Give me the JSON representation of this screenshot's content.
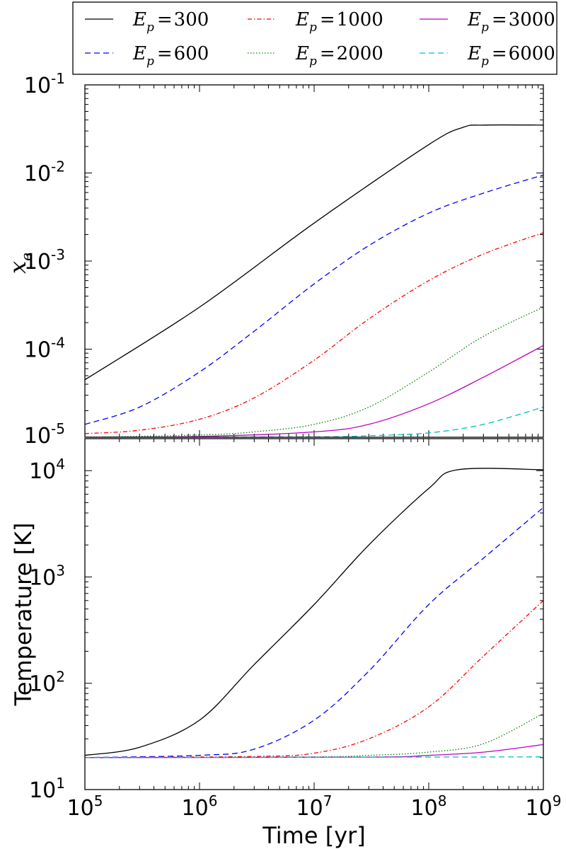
{
  "chart_data": [
    {
      "type": "line",
      "panel": "top",
      "xlabel": "",
      "ylabel": "x_e",
      "xscale": "log",
      "yscale": "log",
      "xlim": [
        100000,
        1000000000
      ],
      "ylim": [
        1e-05,
        0.1
      ],
      "x_tick_labels": [
        "",
        "",
        "",
        "",
        ""
      ],
      "y_tick_labels": [
        {
          "base": "10",
          "exp": "-5"
        },
        {
          "base": "10",
          "exp": "-4"
        },
        {
          "base": "10",
          "exp": "-3"
        },
        {
          "base": "10",
          "exp": "-2"
        },
        {
          "base": "10",
          "exp": "-1"
        }
      ],
      "legend_position": "top",
      "series": [
        {
          "name": "E_p = 300",
          "color": "#000000",
          "dash": "solid",
          "x": [
            100000,
            1000000,
            10000000,
            100000000,
            200000000,
            300000000,
            1000000000
          ],
          "y": [
            4.5e-05,
            0.0003,
            0.0027,
            0.021,
            0.033,
            0.035,
            0.035
          ]
        },
        {
          "name": "E_p = 600",
          "color": "#0000ff",
          "dash": "dashed",
          "x": [
            100000,
            300000,
            1000000,
            3000000,
            10000000,
            30000000,
            100000000,
            300000000,
            1000000000
          ],
          "y": [
            1.4e-05,
            2.2e-05,
            5.5e-05,
            0.00016,
            0.00055,
            0.0015,
            0.0035,
            0.0059,
            0.0095
          ]
        },
        {
          "name": "E_p = 1000",
          "color": "#ff0000",
          "dash": "dashdot",
          "x": [
            100000,
            300000,
            1000000,
            3000000,
            10000000,
            30000000,
            100000000,
            300000000,
            1000000000
          ],
          "y": [
            1.1e-05,
            1.2e-05,
            1.6e-05,
            2.8e-05,
            7.5e-05,
            0.00022,
            0.0006,
            0.0012,
            0.0021
          ]
        },
        {
          "name": "E_p = 2000",
          "color": "#008000",
          "dash": "dotted",
          "x": [
            100000,
            1000000,
            3000000,
            10000000,
            30000000,
            100000000,
            300000000,
            1000000000
          ],
          "y": [
            1e-05,
            1.06e-05,
            1.15e-05,
            1.4e-05,
            2.2e-05,
            5.5e-05,
            0.00014,
            0.0003
          ]
        },
        {
          "name": "E_p = 3000",
          "color": "#bf00bf",
          "dash": "solid",
          "x": [
            100000,
            1000000,
            10000000,
            30000000,
            100000000,
            300000000,
            1000000000
          ],
          "y": [
            1e-05,
            1.02e-05,
            1.15e-05,
            1.4e-05,
            2.4e-05,
            4.8e-05,
            0.00011
          ]
        },
        {
          "name": "E_p = 6000",
          "color": "#00bfbf",
          "dash": "dashed",
          "x": [
            100000,
            10000000,
            30000000,
            100000000,
            300000000,
            1000000000
          ],
          "y": [
            1e-05,
            1.01e-05,
            1.04e-05,
            1.12e-05,
            1.4e-05,
            2.2e-05
          ]
        }
      ]
    },
    {
      "type": "line",
      "panel": "bottom",
      "xlabel": "Time [yr]",
      "ylabel": "Temperature [K]",
      "xscale": "log",
      "yscale": "log",
      "xlim": [
        100000,
        1000000000
      ],
      "ylim": [
        10,
        20000
      ],
      "x_tick_labels": [
        {
          "base": "10",
          "exp": "5"
        },
        {
          "base": "10",
          "exp": "6"
        },
        {
          "base": "10",
          "exp": "7"
        },
        {
          "base": "10",
          "exp": "8"
        },
        {
          "base": "10",
          "exp": "9"
        }
      ],
      "y_tick_labels": [
        {
          "base": "10",
          "exp": "1"
        },
        {
          "base": "10",
          "exp": "2"
        },
        {
          "base": "10",
          "exp": "3"
        },
        {
          "base": "10",
          "exp": "4"
        }
      ],
      "series": [
        {
          "name": "E_p = 300",
          "color": "#000000",
          "dash": "solid",
          "x": [
            100000,
            300000,
            1000000,
            3000000,
            10000000,
            30000000,
            100000000,
            180000000,
            1000000000
          ],
          "y": [
            21,
            25,
            45,
            150,
            550,
            2000,
            6800,
            10200,
            10200
          ]
        },
        {
          "name": "E_p = 600",
          "color": "#0000ff",
          "dash": "dashed",
          "x": [
            100000,
            1000000,
            3000000,
            10000000,
            30000000,
            100000000,
            300000000,
            1000000000
          ],
          "y": [
            20,
            21,
            24,
            45,
            130,
            550,
            1500,
            4500
          ]
        },
        {
          "name": "E_p = 1000",
          "color": "#ff0000",
          "dash": "dashdot",
          "x": [
            100000,
            3000000,
            10000000,
            30000000,
            100000000,
            300000000,
            1000000000
          ],
          "y": [
            20,
            20.5,
            22,
            30,
            60,
            180,
            600
          ]
        },
        {
          "name": "E_p = 2000",
          "color": "#008000",
          "dash": "dotted",
          "x": [
            100000,
            10000000,
            30000000,
            100000000,
            300000000,
            1000000000
          ],
          "y": [
            20,
            20.3,
            21,
            22.5,
            27,
            52
          ]
        },
        {
          "name": "E_p = 3000",
          "color": "#bf00bf",
          "dash": "solid",
          "x": [
            100000,
            30000000,
            100000000,
            300000000,
            1000000000
          ],
          "y": [
            20,
            20.2,
            21,
            22.5,
            26.5
          ]
        },
        {
          "name": "E_p = 6000",
          "color": "#00bfbf",
          "dash": "dashed",
          "x": [
            100000,
            1000000000
          ],
          "y": [
            20,
            20.3
          ]
        }
      ]
    }
  ],
  "legend": {
    "entries": [
      {
        "symbol": "E",
        "sub": "p",
        "eq": "=",
        "value": "300",
        "color": "#000000",
        "dash": "solid"
      },
      {
        "symbol": "E",
        "sub": "p",
        "eq": "=",
        "value": "600",
        "color": "#0000ff",
        "dash": "dashed"
      },
      {
        "symbol": "E",
        "sub": "p",
        "eq": "=",
        "value": "1000",
        "color": "#ff0000",
        "dash": "dashdot"
      },
      {
        "symbol": "E",
        "sub": "p",
        "eq": "=",
        "value": "2000",
        "color": "#008000",
        "dash": "dotted"
      },
      {
        "symbol": "E",
        "sub": "p",
        "eq": "=",
        "value": "3000",
        "color": "#bf00bf",
        "dash": "solid"
      },
      {
        "symbol": "E",
        "sub": "p",
        "eq": "=",
        "value": "6000",
        "color": "#00bfbf",
        "dash": "dashed"
      }
    ]
  },
  "top_ylabel": {
    "symbol": "x",
    "sub": "e"
  }
}
